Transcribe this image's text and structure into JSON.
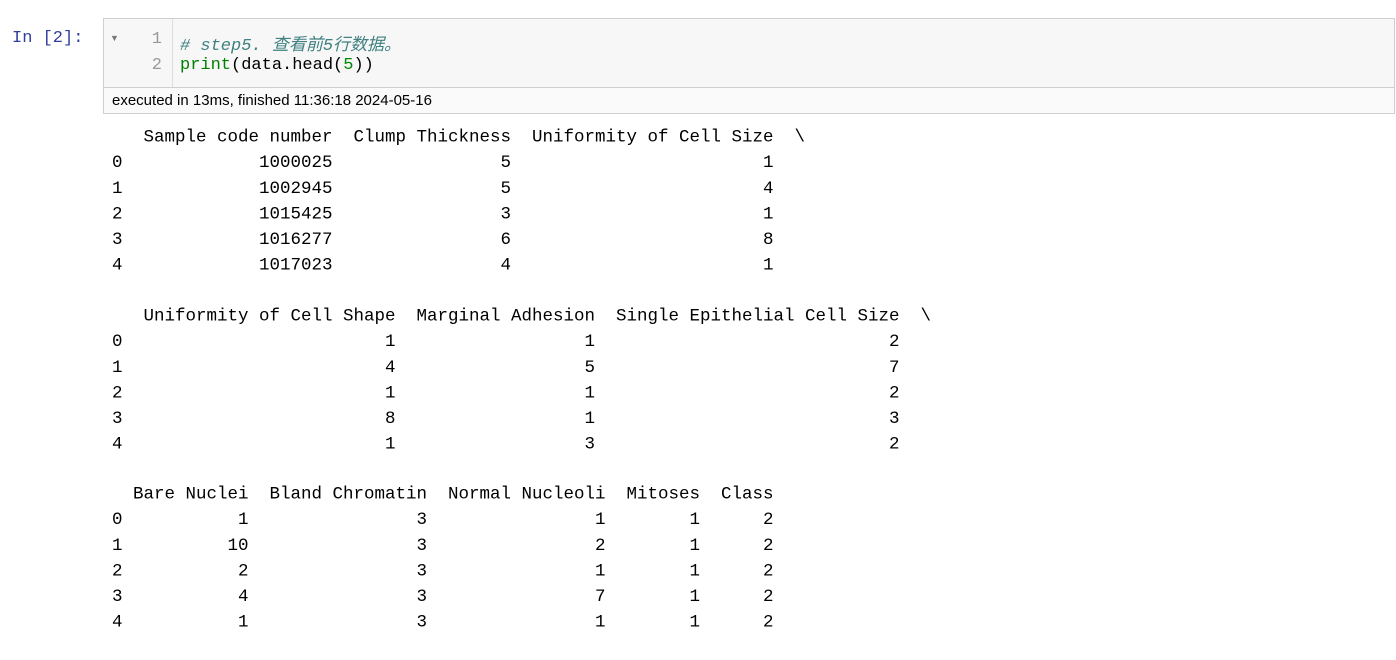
{
  "prompt": "In [2]:",
  "cell": {
    "lines": [
      {
        "number": 1,
        "tokens": [
          "# step5. 查看前5行数据。"
        ]
      },
      {
        "number": 2,
        "tokens": [
          "print",
          "(data.head(",
          "5",
          "))"
        ]
      }
    ],
    "execution_info": "executed in 13ms, finished 11:36:18 2024-05-16"
  },
  "output": {
    "blocks": [
      {
        "columns": [
          "Sample code number",
          "Clump Thickness",
          "Uniformity of Cell Size"
        ],
        "index": [
          0,
          1,
          2,
          3,
          4
        ],
        "rows": [
          [
            1000025,
            5,
            1
          ],
          [
            1002945,
            5,
            4
          ],
          [
            1015425,
            3,
            1
          ],
          [
            1016277,
            6,
            8
          ],
          [
            1017023,
            4,
            1
          ]
        ],
        "continuation": "\\"
      },
      {
        "columns": [
          "Uniformity of Cell Shape",
          "Marginal Adhesion",
          "Single Epithelial Cell Size"
        ],
        "index": [
          0,
          1,
          2,
          3,
          4
        ],
        "rows": [
          [
            1,
            1,
            2
          ],
          [
            4,
            5,
            7
          ],
          [
            1,
            1,
            2
          ],
          [
            8,
            1,
            3
          ],
          [
            1,
            3,
            2
          ]
        ],
        "continuation": "\\"
      },
      {
        "columns": [
          "Bare Nuclei",
          "Bland Chromatin",
          "Normal Nucleoli",
          "Mitoses",
          "Class"
        ],
        "index": [
          0,
          1,
          2,
          3,
          4
        ],
        "rows": [
          [
            1,
            3,
            1,
            1,
            2
          ],
          [
            10,
            3,
            2,
            1,
            2
          ],
          [
            2,
            3,
            1,
            1,
            2
          ],
          [
            4,
            3,
            7,
            1,
            2
          ],
          [
            1,
            3,
            1,
            1,
            2
          ]
        ]
      }
    ]
  }
}
